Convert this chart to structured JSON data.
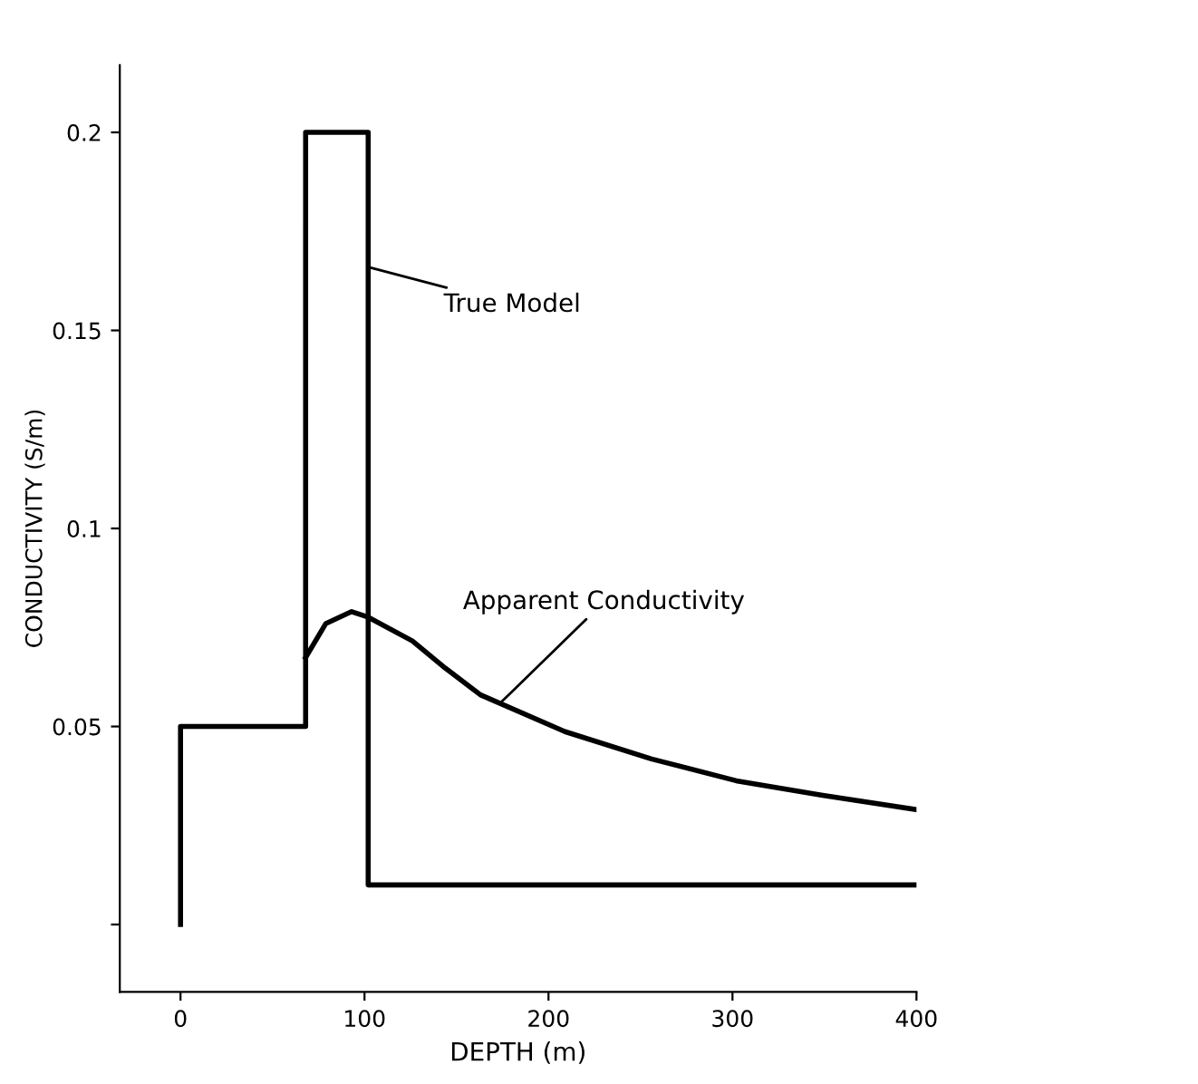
{
  "chart_data": {
    "type": "line",
    "xlabel": "DEPTH (m)",
    "ylabel": "CONDUCTIVITY (S/m)",
    "xlim": [
      -33,
      400
    ],
    "ylim": [
      -0.017,
      0.217
    ],
    "xticks": [
      0,
      100,
      200,
      300,
      400
    ],
    "yticks": [
      {
        "value": 0,
        "label": null
      },
      0.05,
      0.1,
      0.15,
      0.2
    ],
    "grid": false,
    "marker": "none",
    "line_style": "solid",
    "series": [
      {
        "color": "#000000",
        "x": [
          0,
          0,
          68,
          68,
          102,
          102,
          400
        ],
        "values": [
          0,
          0.05,
          0.05,
          0.2,
          0.2,
          0.01,
          0.01
        ]
      },
      {
        "color": "#000000",
        "x": [
          68,
          79,
          93,
          102,
          126,
          144,
          163,
          209,
          256,
          302,
          349,
          400
        ],
        "values": [
          0.0674,
          0.076,
          0.079,
          0.0776,
          0.0716,
          0.0647,
          0.058,
          0.0487,
          0.0418,
          0.0363,
          0.0326,
          0.029
        ]
      }
    ],
    "annotations": [
      {
        "text": "True Model",
        "x": 102,
        "y": 0.166
      },
      {
        "text": "Apparent Conductivity",
        "x": 174,
        "y": 0.056
      }
    ]
  }
}
